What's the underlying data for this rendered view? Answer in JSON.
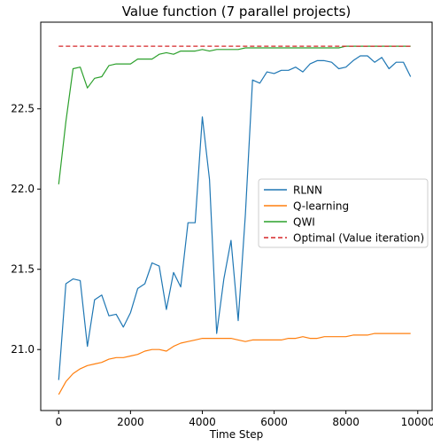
{
  "chart_data": {
    "type": "line",
    "title": "Value function (7 parallel projects)",
    "xlabel": "Time Step",
    "ylabel": "",
    "xlim": [
      -500,
      10400
    ],
    "ylim": [
      20.62,
      23.04
    ],
    "xticks": [
      0,
      2000,
      4000,
      6000,
      8000,
      10000
    ],
    "xtick_labels": [
      "0",
      "2000",
      "4000",
      "6000",
      "8000",
      "10000"
    ],
    "yticks": [
      21.0,
      21.5,
      22.0,
      22.5
    ],
    "ytick_labels": [
      "21.0",
      "21.5",
      "22.0",
      "22.5"
    ],
    "grid": false,
    "legend_position": "center-right",
    "series": [
      {
        "name": "RLNN",
        "color": "#1f77b4",
        "style": "solid",
        "x": [
          0,
          200,
          400,
          600,
          800,
          1000,
          1200,
          1400,
          1600,
          1800,
          2000,
          2200,
          2400,
          2600,
          2800,
          3000,
          3200,
          3400,
          3600,
          3800,
          4000,
          4200,
          4400,
          4600,
          4800,
          5000,
          5200,
          5400,
          5600,
          5800,
          6000,
          6200,
          6400,
          6600,
          6800,
          7000,
          7200,
          7400,
          7600,
          7800,
          8000,
          8200,
          8400,
          8600,
          8800,
          9000,
          9200,
          9400,
          9600,
          9800
        ],
        "y": [
          20.81,
          21.41,
          21.44,
          21.43,
          21.02,
          21.31,
          21.34,
          21.21,
          21.22,
          21.14,
          21.23,
          21.38,
          21.41,
          21.54,
          21.52,
          21.25,
          21.48,
          21.39,
          21.79,
          21.79,
          22.45,
          22.06,
          21.1,
          21.44,
          21.68,
          21.18,
          21.84,
          22.68,
          22.66,
          22.73,
          22.72,
          22.74,
          22.74,
          22.76,
          22.73,
          22.78,
          22.8,
          22.8,
          22.79,
          22.75,
          22.76,
          22.8,
          22.83,
          22.83,
          22.79,
          22.82,
          22.75,
          22.79,
          22.79,
          22.7
        ]
      },
      {
        "name": "Q-learning",
        "color": "#ff7f0e",
        "style": "solid",
        "x": [
          0,
          200,
          400,
          600,
          800,
          1000,
          1200,
          1400,
          1600,
          1800,
          2000,
          2200,
          2400,
          2600,
          2800,
          3000,
          3200,
          3400,
          3600,
          3800,
          4000,
          4200,
          4400,
          4600,
          4800,
          5000,
          5200,
          5400,
          5600,
          5800,
          6000,
          6200,
          6400,
          6600,
          6800,
          7000,
          7200,
          7400,
          7600,
          7800,
          8000,
          8200,
          8400,
          8600,
          8800,
          9000,
          9200,
          9400,
          9600,
          9800
        ],
        "y": [
          20.72,
          20.8,
          20.85,
          20.88,
          20.9,
          20.91,
          20.92,
          20.94,
          20.95,
          20.95,
          20.96,
          20.97,
          20.99,
          21.0,
          21.0,
          20.99,
          21.02,
          21.04,
          21.05,
          21.06,
          21.07,
          21.07,
          21.07,
          21.07,
          21.07,
          21.06,
          21.05,
          21.06,
          21.06,
          21.06,
          21.06,
          21.06,
          21.07,
          21.07,
          21.08,
          21.07,
          21.07,
          21.08,
          21.08,
          21.08,
          21.08,
          21.09,
          21.09,
          21.09,
          21.1,
          21.1,
          21.1,
          21.1,
          21.1,
          21.1
        ]
      },
      {
        "name": "QWI",
        "color": "#2ca02c",
        "style": "solid",
        "x": [
          0,
          200,
          400,
          600,
          800,
          1000,
          1200,
          1400,
          1600,
          1800,
          2000,
          2200,
          2400,
          2600,
          2800,
          3000,
          3200,
          3400,
          3600,
          3800,
          4000,
          4200,
          4400,
          4600,
          4800,
          5000,
          5200,
          5400,
          5600,
          5800,
          6000,
          6200,
          6400,
          6600,
          6800,
          7000,
          7200,
          7400,
          7600,
          7800,
          8000,
          8200,
          8400,
          8600,
          8800,
          9000,
          9200,
          9400,
          9600,
          9800
        ],
        "y": [
          22.03,
          22.42,
          22.75,
          22.76,
          22.63,
          22.69,
          22.7,
          22.77,
          22.78,
          22.78,
          22.78,
          22.81,
          22.81,
          22.81,
          22.84,
          22.85,
          22.84,
          22.86,
          22.86,
          22.86,
          22.87,
          22.86,
          22.87,
          22.87,
          22.87,
          22.87,
          22.88,
          22.88,
          22.88,
          22.88,
          22.88,
          22.88,
          22.88,
          22.88,
          22.88,
          22.88,
          22.88,
          22.88,
          22.88,
          22.88,
          22.89,
          22.89,
          22.89,
          22.89,
          22.89,
          22.89,
          22.89,
          22.89,
          22.89,
          22.89
        ]
      },
      {
        "name": "Optimal (Value iteration)",
        "color": "#d62728",
        "style": "dashed",
        "x": [
          0,
          9800
        ],
        "y": [
          22.89,
          22.89
        ]
      }
    ]
  }
}
